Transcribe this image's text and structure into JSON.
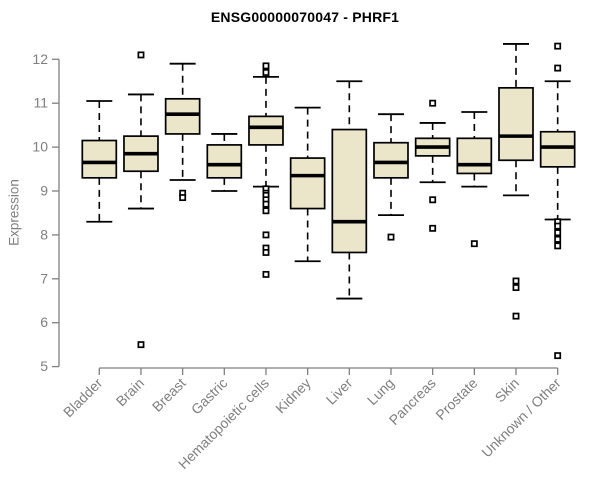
{
  "title": "ENSG00000070047 - PHRF1",
  "ylabel": "Expression",
  "chart_data": {
    "type": "boxplot",
    "title": "ENSG00000070047 - PHRF1",
    "xlabel": "",
    "ylabel": "Expression",
    "ylim": [
      5,
      12
    ],
    "yticks": [
      5,
      6,
      7,
      8,
      9,
      10,
      11,
      12
    ],
    "grid": false,
    "legend": "none",
    "box_fill_color": "#EBE5C9",
    "box_stroke_color": "#000000",
    "axis_color": "#808080",
    "label_color": "#7f7f7f",
    "categories": [
      "Bladder",
      "Brain",
      "Breast",
      "Gastric",
      "Hematopoietic cells",
      "Kidney",
      "Liver",
      "Lung",
      "Pancreas",
      "Prostate",
      "Skin",
      "Unknown / Other"
    ],
    "series": [
      {
        "name": "Bladder",
        "whisker_low": 8.3,
        "q1": 9.3,
        "median": 9.65,
        "q3": 10.15,
        "whisker_high": 11.05,
        "outliers": []
      },
      {
        "name": "Brain",
        "whisker_low": 8.6,
        "q1": 9.45,
        "median": 9.85,
        "q3": 10.25,
        "whisker_high": 11.2,
        "outliers": [
          12.1,
          5.5
        ]
      },
      {
        "name": "Breast",
        "whisker_low": 9.25,
        "q1": 10.3,
        "median": 10.75,
        "q3": 11.1,
        "whisker_high": 11.9,
        "outliers": [
          8.95,
          8.85
        ]
      },
      {
        "name": "Gastric",
        "whisker_low": 9.0,
        "q1": 9.3,
        "median": 9.6,
        "q3": 10.05,
        "whisker_high": 10.3,
        "outliers": []
      },
      {
        "name": "Hematopoietic cells",
        "whisker_low": 9.1,
        "q1": 10.05,
        "median": 10.45,
        "q3": 10.7,
        "whisker_high": 11.6,
        "outliers": [
          11.85,
          11.7,
          9.05,
          8.95,
          8.9,
          8.8,
          8.7,
          8.55,
          8.0,
          7.7,
          7.6,
          7.1
        ]
      },
      {
        "name": "Kidney",
        "whisker_low": 7.4,
        "q1": 8.6,
        "median": 9.35,
        "q3": 9.75,
        "whisker_high": 10.9,
        "outliers": []
      },
      {
        "name": "Liver",
        "whisker_low": 6.55,
        "q1": 7.6,
        "median": 8.3,
        "q3": 10.4,
        "whisker_high": 11.5,
        "outliers": []
      },
      {
        "name": "Lung",
        "whisker_low": 8.45,
        "q1": 9.3,
        "median": 9.65,
        "q3": 10.1,
        "whisker_high": 10.75,
        "outliers": [
          7.95
        ]
      },
      {
        "name": "Pancreas",
        "whisker_low": 9.2,
        "q1": 9.8,
        "median": 10.0,
        "q3": 10.2,
        "whisker_high": 10.55,
        "outliers": [
          11.0,
          8.8,
          8.15
        ]
      },
      {
        "name": "Prostate",
        "whisker_low": 9.1,
        "q1": 9.4,
        "median": 9.6,
        "q3": 10.2,
        "whisker_high": 10.8,
        "outliers": [
          7.8
        ]
      },
      {
        "name": "Skin",
        "whisker_low": 8.9,
        "q1": 9.7,
        "median": 10.25,
        "q3": 11.35,
        "whisker_high": 12.35,
        "outliers": [
          6.95,
          6.8,
          6.15
        ]
      },
      {
        "name": "Unknown / Other",
        "whisker_low": 8.35,
        "q1": 9.55,
        "median": 10.0,
        "q3": 10.35,
        "whisker_high": 11.5,
        "outliers": [
          12.3,
          11.8,
          8.3,
          8.2,
          8.05,
          7.9,
          7.75,
          5.25
        ]
      }
    ]
  }
}
